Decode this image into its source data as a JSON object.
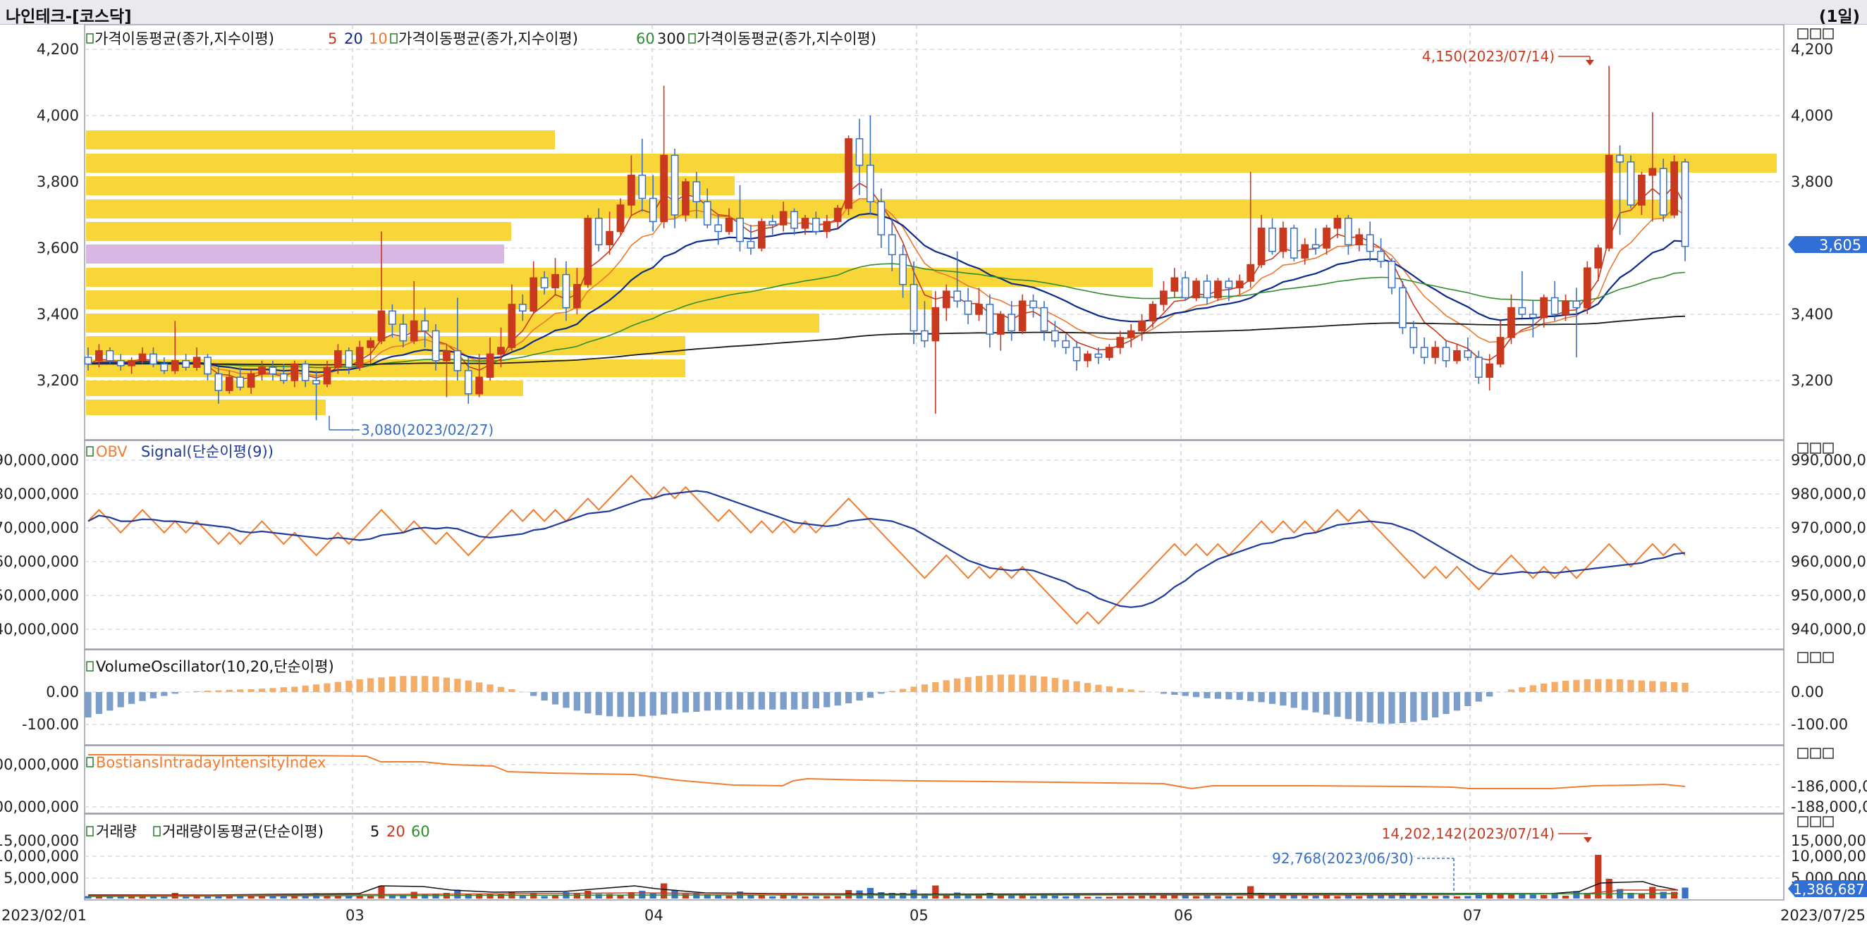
{
  "window": {
    "title": "나인테크-[코스닥]",
    "period": "(1일)"
  },
  "colors": {
    "up": "#c8391e",
    "down": "#3a70c4",
    "ma5": "#c8391e",
    "ma10": "#e87a30",
    "ma20": "#0b2a8a",
    "ma60": "#2e8c2e",
    "ma300": "#1a1a1a",
    "volprofile": "#f9d637",
    "volprofile_cur": "#d9b7e3",
    "obv": "#f07d30",
    "signal": "#1f3b9a",
    "osc_pos": "#f4ad68",
    "osc_neg": "#7d9ec8",
    "biii": "#f07d30"
  },
  "price_panel": {
    "legend_1": "가격이동평균(종가,지수이평)",
    "legend_1_params": [
      "5",
      "20",
      "10"
    ],
    "legend_2": "가격이동평균(종가,지수이평)",
    "legend_2_params": [
      "60",
      "300"
    ],
    "legend_3": "가격이동평균(종가,지수이평)",
    "y_ticks": [
      "4,200",
      "4,000",
      "3,800",
      "3,600",
      "3,400",
      "3,200"
    ],
    "high_label": "4,150(2023/07/14)",
    "low_label": "3,080(2023/02/27)",
    "current_price": "3,605"
  },
  "obv_panel": {
    "legend_obv": "OBV",
    "legend_signal": "Signal(단순이평(9))",
    "y_ticks_left": [
      "90,000,000",
      "80,000,000",
      "70,000,000",
      "60,000,000",
      "50,000,000",
      "40,000,000"
    ],
    "y_ticks_right": [
      "990,000,00",
      "980,000,00",
      "970,000,00",
      "960,000,00",
      "950,000,00",
      "940,000,00"
    ]
  },
  "vo_panel": {
    "legend": "VolumeOscillator(10,20,단순이평)",
    "y_ticks_left": [
      "0.00",
      "-100.00"
    ],
    "y_ticks_right": [
      "0.00",
      "-100.00"
    ]
  },
  "biii_panel": {
    "legend": "BostiansIntradayIntensityIndex",
    "y_ticks_left": [
      "00,000,000",
      "00,000,000"
    ],
    "y_ticks_right": [
      "-186,000,0",
      "-188,000,0"
    ]
  },
  "volume_panel": {
    "legend_1": "거래량",
    "legend_2": "거래량이동평균(단순이평)",
    "legend_params": [
      "5",
      "20",
      "60"
    ],
    "y_ticks_left": [
      "15,000,000",
      "10,000,000",
      "5,000,000"
    ],
    "y_ticks_right": [
      "15,000,000",
      "10,000,000",
      "5,000,000"
    ],
    "max_label": "14,202,142(2023/07/14)",
    "min_label": "92,768(2023/06/30)",
    "current_volume": "1,386,687"
  },
  "x_axis": {
    "labels": [
      "2023/02/01",
      "03",
      "04",
      "05",
      "06",
      "07",
      "2023/07/25"
    ]
  },
  "panel_tool_icons": [
    "minimize-icon",
    "maximize-icon",
    "close-icon"
  ],
  "chart_data": {
    "type": "candlestick",
    "title": "",
    "x": [
      "2023/02/01",
      "2023/07/25"
    ],
    "ylim": [
      3060,
      4250
    ],
    "grid": true,
    "note_points": {
      "high": {
        "date": "2023/07/14",
        "value": 4150
      },
      "low": {
        "date": "2023/02/27",
        "value": 3080
      }
    },
    "candles": [
      [
        3270,
        3300,
        3230,
        3250
      ],
      [
        3260,
        3310,
        3240,
        3290
      ],
      [
        3290,
        3300,
        3250,
        3260
      ],
      [
        3260,
        3280,
        3230,
        3245
      ],
      [
        3245,
        3270,
        3220,
        3260
      ],
      [
        3260,
        3300,
        3250,
        3280
      ],
      [
        3280,
        3300,
        3240,
        3250
      ],
      [
        3250,
        3270,
        3220,
        3230
      ],
      [
        3230,
        3380,
        3220,
        3260
      ],
      [
        3260,
        3280,
        3230,
        3240
      ],
      [
        3240,
        3300,
        3230,
        3270
      ],
      [
        3270,
        3280,
        3200,
        3220
      ],
      [
        3220,
        3240,
        3130,
        3170
      ],
      [
        3170,
        3230,
        3160,
        3210
      ],
      [
        3210,
        3240,
        3170,
        3180
      ],
      [
        3180,
        3230,
        3160,
        3220
      ],
      [
        3220,
        3260,
        3200,
        3240
      ],
      [
        3240,
        3260,
        3200,
        3220
      ],
      [
        3220,
        3250,
        3190,
        3200
      ],
      [
        3200,
        3260,
        3180,
        3250
      ],
      [
        3250,
        3260,
        3180,
        3200
      ],
      [
        3200,
        3230,
        3080,
        3190
      ],
      [
        3190,
        3260,
        3180,
        3240
      ],
      [
        3240,
        3310,
        3220,
        3290
      ],
      [
        3290,
        3300,
        3220,
        3240
      ],
      [
        3240,
        3320,
        3230,
        3300
      ],
      [
        3300,
        3330,
        3250,
        3320
      ],
      [
        3320,
        3650,
        3310,
        3410
      ],
      [
        3410,
        3430,
        3330,
        3370
      ],
      [
        3370,
        3400,
        3300,
        3320
      ],
      [
        3320,
        3500,
        3310,
        3380
      ],
      [
        3380,
        3420,
        3300,
        3350
      ],
      [
        3350,
        3370,
        3230,
        3260
      ],
      [
        3260,
        3310,
        3150,
        3290
      ],
      [
        3290,
        3450,
        3200,
        3230
      ],
      [
        3230,
        3270,
        3130,
        3160
      ],
      [
        3160,
        3280,
        3150,
        3210
      ],
      [
        3210,
        3330,
        3200,
        3280
      ],
      [
        3280,
        3360,
        3240,
        3300
      ],
      [
        3300,
        3490,
        3290,
        3430
      ],
      [
        3430,
        3460,
        3380,
        3410
      ],
      [
        3410,
        3560,
        3400,
        3510
      ],
      [
        3510,
        3530,
        3460,
        3480
      ],
      [
        3480,
        3570,
        3460,
        3520
      ],
      [
        3520,
        3560,
        3380,
        3420
      ],
      [
        3420,
        3540,
        3400,
        3490
      ],
      [
        3490,
        3700,
        3480,
        3690
      ],
      [
        3690,
        3720,
        3590,
        3610
      ],
      [
        3610,
        3710,
        3580,
        3650
      ],
      [
        3650,
        3750,
        3640,
        3730
      ],
      [
        3730,
        3880,
        3700,
        3820
      ],
      [
        3820,
        3930,
        3710,
        3750
      ],
      [
        3750,
        3820,
        3650,
        3680
      ],
      [
        3680,
        4090,
        3660,
        3880
      ],
      [
        3880,
        3900,
        3660,
        3700
      ],
      [
        3700,
        3810,
        3680,
        3800
      ],
      [
        3800,
        3830,
        3690,
        3740
      ],
      [
        3740,
        3780,
        3660,
        3670
      ],
      [
        3670,
        3700,
        3610,
        3650
      ],
      [
        3650,
        3720,
        3640,
        3690
      ],
      [
        3690,
        3790,
        3590,
        3620
      ],
      [
        3620,
        3670,
        3580,
        3600
      ],
      [
        3600,
        3690,
        3590,
        3680
      ],
      [
        3680,
        3700,
        3640,
        3670
      ],
      [
        3670,
        3740,
        3650,
        3710
      ],
      [
        3710,
        3720,
        3640,
        3660
      ],
      [
        3660,
        3700,
        3640,
        3690
      ],
      [
        3690,
        3710,
        3640,
        3650
      ],
      [
        3650,
        3700,
        3630,
        3680
      ],
      [
        3680,
        3730,
        3660,
        3720
      ],
      [
        3720,
        3940,
        3700,
        3930
      ],
      [
        3930,
        3990,
        3760,
        3850
      ],
      [
        3850,
        4000,
        3700,
        3740
      ],
      [
        3740,
        3780,
        3600,
        3640
      ],
      [
        3640,
        3690,
        3530,
        3580
      ],
      [
        3580,
        3610,
        3450,
        3490
      ],
      [
        3490,
        3560,
        3310,
        3350
      ],
      [
        3350,
        3440,
        3300,
        3320
      ],
      [
        3320,
        3470,
        3100,
        3420
      ],
      [
        3420,
        3490,
        3380,
        3470
      ],
      [
        3470,
        3590,
        3420,
        3440
      ],
      [
        3440,
        3480,
        3370,
        3400
      ],
      [
        3400,
        3480,
        3380,
        3430
      ],
      [
        3430,
        3460,
        3300,
        3340
      ],
      [
        3340,
        3410,
        3290,
        3400
      ],
      [
        3400,
        3440,
        3320,
        3350
      ],
      [
        3350,
        3460,
        3340,
        3440
      ],
      [
        3440,
        3460,
        3390,
        3420
      ],
      [
        3420,
        3440,
        3320,
        3350
      ],
      [
        3350,
        3380,
        3300,
        3320
      ],
      [
        3320,
        3340,
        3280,
        3300
      ],
      [
        3300,
        3320,
        3230,
        3260
      ],
      [
        3260,
        3290,
        3240,
        3280
      ],
      [
        3280,
        3300,
        3250,
        3270
      ],
      [
        3270,
        3310,
        3260,
        3300
      ],
      [
        3300,
        3350,
        3280,
        3330
      ],
      [
        3330,
        3370,
        3300,
        3350
      ],
      [
        3350,
        3400,
        3320,
        3380
      ],
      [
        3380,
        3440,
        3360,
        3430
      ],
      [
        3430,
        3500,
        3410,
        3470
      ],
      [
        3470,
        3540,
        3450,
        3510
      ],
      [
        3510,
        3530,
        3440,
        3450
      ],
      [
        3450,
        3510,
        3440,
        3500
      ],
      [
        3500,
        3520,
        3430,
        3450
      ],
      [
        3450,
        3510,
        3440,
        3500
      ],
      [
        3500,
        3510,
        3440,
        3480
      ],
      [
        3480,
        3520,
        3460,
        3500
      ],
      [
        3500,
        3830,
        3480,
        3550
      ],
      [
        3550,
        3700,
        3540,
        3660
      ],
      [
        3660,
        3690,
        3580,
        3590
      ],
      [
        3590,
        3680,
        3570,
        3660
      ],
      [
        3660,
        3670,
        3560,
        3570
      ],
      [
        3570,
        3630,
        3550,
        3610
      ],
      [
        3610,
        3660,
        3580,
        3600
      ],
      [
        3600,
        3670,
        3580,
        3660
      ],
      [
        3660,
        3700,
        3630,
        3690
      ],
      [
        3690,
        3700,
        3580,
        3610
      ],
      [
        3610,
        3660,
        3590,
        3640
      ],
      [
        3640,
        3680,
        3560,
        3590
      ],
      [
        3590,
        3630,
        3540,
        3560
      ],
      [
        3560,
        3570,
        3460,
        3480
      ],
      [
        3480,
        3500,
        3340,
        3360
      ],
      [
        3360,
        3380,
        3280,
        3300
      ],
      [
        3300,
        3330,
        3250,
        3270
      ],
      [
        3270,
        3320,
        3250,
        3300
      ],
      [
        3300,
        3320,
        3240,
        3260
      ],
      [
        3260,
        3310,
        3250,
        3290
      ],
      [
        3290,
        3330,
        3260,
        3270
      ],
      [
        3270,
        3290,
        3190,
        3210
      ],
      [
        3210,
        3280,
        3170,
        3250
      ],
      [
        3250,
        3380,
        3240,
        3330
      ],
      [
        3330,
        3460,
        3310,
        3420
      ],
      [
        3420,
        3530,
        3390,
        3400
      ],
      [
        3400,
        3440,
        3330,
        3390
      ],
      [
        3390,
        3460,
        3360,
        3450
      ],
      [
        3450,
        3500,
        3380,
        3400
      ],
      [
        3400,
        3460,
        3380,
        3440
      ],
      [
        3440,
        3480,
        3270,
        3420
      ],
      [
        3420,
        3560,
        3400,
        3540
      ],
      [
        3540,
        3610,
        3500,
        3600
      ],
      [
        3600,
        4150,
        3590,
        3880
      ],
      [
        3880,
        3910,
        3640,
        3860
      ],
      [
        3860,
        3880,
        3720,
        3730
      ],
      [
        3730,
        3830,
        3700,
        3820
      ],
      [
        3820,
        4010,
        3680,
        3840
      ],
      [
        3840,
        3870,
        3680,
        3700
      ],
      [
        3700,
        3880,
        3690,
        3860
      ],
      [
        3860,
        3870,
        3560,
        3605
      ]
    ]
  }
}
